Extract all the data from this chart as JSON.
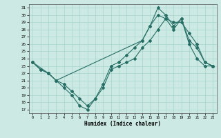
{
  "xlabel": "Humidex (Indice chaleur)",
  "bg_color": "#cce9e4",
  "grid_color": "#a8d5ce",
  "line_color": "#276e65",
  "xlim": [
    -0.5,
    23.5
  ],
  "ylim": [
    16.5,
    31.5
  ],
  "xticks": [
    0,
    1,
    2,
    3,
    4,
    5,
    6,
    7,
    8,
    9,
    10,
    11,
    12,
    13,
    14,
    15,
    16,
    17,
    18,
    19,
    20,
    21,
    22,
    23
  ],
  "yticks": [
    17,
    18,
    19,
    20,
    21,
    22,
    23,
    24,
    25,
    26,
    27,
    28,
    29,
    30,
    31
  ],
  "line1_x": [
    0,
    1,
    2,
    3,
    4,
    5,
    6,
    7,
    8,
    9,
    10,
    11,
    12,
    13,
    14,
    15,
    16,
    17,
    18,
    19,
    20,
    21,
    22,
    23
  ],
  "line1_y": [
    23.5,
    22.5,
    22.0,
    21.0,
    20.0,
    19.0,
    17.5,
    17.0,
    18.5,
    20.5,
    23.0,
    23.5,
    24.5,
    25.5,
    26.5,
    28.5,
    31.0,
    30.0,
    28.5,
    29.5,
    26.0,
    24.0,
    23.0,
    23.0
  ],
  "line2_x": [
    0,
    1,
    2,
    3,
    14,
    15,
    16,
    17,
    18,
    19,
    20,
    21,
    22,
    23
  ],
  "line2_y": [
    23.5,
    22.5,
    22.0,
    21.0,
    26.5,
    28.5,
    30.0,
    29.5,
    28.0,
    29.5,
    26.5,
    25.5,
    23.5,
    23.0
  ],
  "line3_x": [
    0,
    2,
    3,
    4,
    5,
    6,
    7,
    8,
    9,
    10,
    11,
    12,
    13,
    14,
    15,
    16,
    17,
    18,
    19,
    20,
    21,
    22,
    23
  ],
  "line3_y": [
    23.5,
    22.0,
    21.0,
    20.5,
    19.5,
    18.5,
    17.5,
    18.5,
    20.0,
    22.5,
    23.0,
    23.5,
    24.0,
    25.5,
    26.5,
    28.0,
    29.5,
    29.0,
    29.0,
    27.5,
    26.0,
    23.5,
    23.0
  ]
}
